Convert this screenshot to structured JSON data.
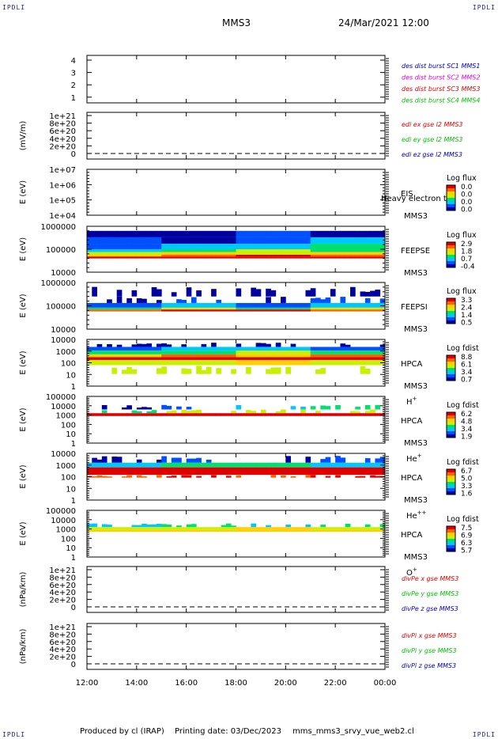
{
  "corners": {
    "tl": "IPDLI",
    "tr": "IPDLI",
    "bl": "IPDLI",
    "br": "IPDLI"
  },
  "header": {
    "spacecraft": "MMS3",
    "datetime": "24/Mar/2021 12:00"
  },
  "footer": {
    "producer": "Produced by cl (IRAP)",
    "printing": "Printing date: 03/Dec/2023",
    "script": "mms_mms3_srvy_vue_web2.cl"
  },
  "colors": {
    "red": "#e00000",
    "green": "#00c000",
    "blue": "#0000c0",
    "magenta": "#e000e0",
    "spectrogram_scale": [
      "#0000a0",
      "#0050ff",
      "#00c8ff",
      "#00e070",
      "#c8f000",
      "#ffd000",
      "#ff6000",
      "#e00000"
    ]
  },
  "chart_data": {
    "type": "heatmap",
    "x_tick_labels": [
      "12:00",
      "14:00",
      "16:00",
      "18:00",
      "20:00",
      "22:00",
      "00:00"
    ],
    "x_range_hours": [
      12,
      24
    ],
    "panels": [
      {
        "id": "des-dist-burst",
        "type": "line",
        "ylabel": "",
        "ytick_labels": [
          "4",
          "3",
          "2",
          "1"
        ],
        "ylim": [
          0.5,
          4.5
        ],
        "legend": [
          {
            "text": "des dist burst SC1 MMS1",
            "color": "#0000c0"
          },
          {
            "text": "des dist burst SC2 MMS2",
            "color": "#e000e0"
          },
          {
            "text": "des dist burst SC3 MMS3",
            "color": "#e00000"
          },
          {
            "text": "des dist burst SC4 MMS4",
            "color": "#00c000"
          }
        ]
      },
      {
        "id": "edi-e-field",
        "type": "line",
        "ylabel": "(mV/m)",
        "ytick_labels": [
          "1e+21",
          "8e+20",
          "6e+20",
          "4e+20",
          "2e+20",
          "0"
        ],
        "ylim": [
          0,
          1e+21
        ],
        "zero_line": true,
        "legend": [
          {
            "text": "edi ex gse l2 MMS3",
            "color": "#e00000"
          },
          {
            "text": "edi ey gse l2 MMS3",
            "color": "#00c000"
          },
          {
            "text": "edi ez gse l2 MMS3",
            "color": "#0000c0"
          }
        ]
      },
      {
        "id": "eis",
        "type": "heatmap",
        "ylabel": "E (eV)",
        "ytick_labels": [
          "1e+07",
          "1e+06",
          "1e+05",
          "1e+04"
        ],
        "ylim": [
          10000,
          10000000
        ],
        "yscale": "log",
        "instrument": "EIS",
        "spacecraft": "MMS3",
        "species": "",
        "overlay": "Heavy electron to",
        "colorbar": {
          "title": "Log flux",
          "labels": [
            "0.0",
            "0.0",
            "0.0",
            "0.0"
          ]
        },
        "fill_bands": []
      },
      {
        "id": "feepse",
        "type": "heatmap",
        "ylabel": "E (eV)",
        "ytick_labels": [
          "1000000",
          "100000",
          "10000"
        ],
        "ylim": [
          10000,
          1000000
        ],
        "yscale": "log",
        "instrument": "FEEPSE",
        "spacecraft": "MMS3",
        "species": "",
        "overlay": "",
        "colorbar": {
          "title": "Log flux",
          "labels": [
            "2.9",
            "1.8",
            "0.7",
            "-0.4"
          ]
        },
        "fill_bands": [
          {
            "y_from": 0.1,
            "y_to": 0.24,
            "colors": [
              0,
              0,
              1,
              0
            ]
          },
          {
            "y_from": 0.24,
            "y_to": 0.38,
            "colors": [
              1,
              0,
              1,
              2
            ]
          },
          {
            "y_from": 0.38,
            "y_to": 0.5,
            "colors": [
              1,
              2,
              2,
              3
            ]
          },
          {
            "y_from": 0.5,
            "y_to": 0.56,
            "colors": [
              2,
              3,
              4,
              3
            ]
          },
          {
            "y_from": 0.56,
            "y_to": 0.62,
            "colors": [
              4,
              5,
              4,
              5
            ]
          },
          {
            "y_from": 0.62,
            "y_to": 0.66,
            "colors": [
              5,
              6,
              7,
              6
            ]
          },
          {
            "y_from": 0.66,
            "y_to": 0.7,
            "colors": [
              7,
              7,
              7,
              7
            ]
          }
        ]
      },
      {
        "id": "feepsi",
        "type": "heatmap",
        "ylabel": "E (eV)",
        "ytick_labels": [
          "1000000",
          "100000",
          "10000"
        ],
        "ylim": [
          10000,
          1000000
        ],
        "yscale": "log",
        "instrument": "FEEPSI",
        "spacecraft": "MMS3",
        "species": "",
        "overlay": "",
        "colorbar": {
          "title": "Log flux",
          "labels": [
            "3.3",
            "2.4",
            "1.4",
            "0.5"
          ]
        },
        "fill_bands": [
          {
            "y_from": 0.08,
            "y_to": 0.3,
            "colors": [
              0,
              0,
              0,
              0
            ],
            "sparse": true
          },
          {
            "y_from": 0.3,
            "y_to": 0.44,
            "colors": [
              0,
              1,
              0,
              1
            ],
            "sparse": true
          },
          {
            "y_from": 0.44,
            "y_to": 0.54,
            "colors": [
              1,
              2,
              1,
              2
            ]
          },
          {
            "y_from": 0.54,
            "y_to": 0.58,
            "colors": [
              3,
              4,
              3,
              4
            ]
          },
          {
            "y_from": 0.58,
            "y_to": 0.62,
            "colors": [
              6,
              7,
              7,
              6
            ]
          }
        ]
      },
      {
        "id": "hpca-h",
        "type": "heatmap",
        "ylabel": "E (eV)",
        "ytick_labels": [
          "10000",
          "1000",
          "100",
          "10",
          "1"
        ],
        "ylim": [
          1,
          10000
        ],
        "yscale": "log",
        "instrument": "HPCA",
        "spacecraft": "MMS3",
        "species": "H",
        "species_sup": "+",
        "overlay": "",
        "colorbar": {
          "title": "Log fdist",
          "labels": [
            "8.8",
            "6.1",
            "3.4",
            "0.7"
          ]
        },
        "fill_bands": [
          {
            "y_from": 0.06,
            "y_to": 0.16,
            "colors": [
              0,
              0,
              0,
              0
            ],
            "sparse": true
          },
          {
            "y_from": 0.16,
            "y_to": 0.24,
            "colors": [
              1,
              2,
              2,
              1
            ]
          },
          {
            "y_from": 0.24,
            "y_to": 0.32,
            "colors": [
              3,
              3,
              4,
              3
            ]
          },
          {
            "y_from": 0.32,
            "y_to": 0.38,
            "colors": [
              5,
              6,
              5,
              6
            ]
          },
          {
            "y_from": 0.38,
            "y_to": 0.44,
            "colors": [
              7,
              7,
              7,
              7
            ]
          },
          {
            "y_from": 0.44,
            "y_to": 0.55,
            "colors": [
              4,
              4,
              5,
              4
            ]
          },
          {
            "y_from": 0.55,
            "y_to": 0.74,
            "colors": [
              4,
              4,
              4,
              4
            ],
            "sparse": true
          }
        ]
      },
      {
        "id": "hpca-he1",
        "type": "heatmap",
        "ylabel": "E (eV)",
        "ytick_labels": [
          "100000",
          "10000",
          "1000",
          "100",
          "10",
          "1"
        ],
        "ylim": [
          1,
          100000
        ],
        "yscale": "log",
        "instrument": "HPCA",
        "spacecraft": "MMS3",
        "species": "He",
        "species_sup": "+",
        "overlay": "",
        "colorbar": {
          "title": "Log fdist",
          "labels": [
            "6.2",
            "4.8",
            "3.4",
            "1.9"
          ]
        },
        "fill_bands": [
          {
            "y_from": 0.18,
            "y_to": 0.28,
            "colors": [
              0,
              1,
              2,
              3
            ],
            "sparse": true
          },
          {
            "y_from": 0.28,
            "y_to": 0.36,
            "colors": [
              3,
              4,
              4,
              4
            ],
            "sparse": true
          },
          {
            "y_from": 0.36,
            "y_to": 0.42,
            "colors": [
              7,
              7,
              7,
              7
            ]
          }
        ]
      },
      {
        "id": "hpca-he2",
        "type": "heatmap",
        "ylabel": "E (eV)",
        "ytick_labels": [
          "10000",
          "1000",
          "100",
          "10",
          "1"
        ],
        "ylim": [
          1,
          10000
        ],
        "yscale": "log",
        "instrument": "HPCA",
        "spacecraft": "MMS3",
        "species": "He",
        "species_sup": "++",
        "overlay": "",
        "colorbar": {
          "title": "Log fdist",
          "labels": [
            "6.7",
            "5.0",
            "3.3",
            "1.6"
          ]
        },
        "fill_bands": [
          {
            "y_from": 0.04,
            "y_to": 0.2,
            "colors": [
              0,
              1,
              0,
              1
            ],
            "sparse": true
          },
          {
            "y_from": 0.2,
            "y_to": 0.3,
            "colors": [
              2,
              3,
              3,
              2
            ]
          },
          {
            "y_from": 0.3,
            "y_to": 0.46,
            "colors": [
              7,
              7,
              7,
              7
            ]
          },
          {
            "y_from": 0.46,
            "y_to": 0.52,
            "colors": [
              6,
              7,
              6,
              7
            ],
            "sparse": true
          }
        ]
      },
      {
        "id": "hpca-o",
        "type": "heatmap",
        "ylabel": "E (eV)",
        "ytick_labels": [
          "100000",
          "10000",
          "1000",
          "100",
          "10",
          "1"
        ],
        "ylim": [
          1,
          100000
        ],
        "yscale": "log",
        "instrument": "HPCA",
        "spacecraft": "MMS3",
        "species": "O",
        "species_sup": "+",
        "overlay": "",
        "colorbar": {
          "title": "Log fdist",
          "labels": [
            "7.5",
            "6.9",
            "6.3",
            "5.7"
          ]
        },
        "fill_bands": [
          {
            "y_from": 0.28,
            "y_to": 0.36,
            "colors": [
              2,
              3,
              2,
              3
            ],
            "sparse": true
          },
          {
            "y_from": 0.36,
            "y_to": 0.42,
            "colors": [
              4,
              4,
              5,
              4
            ]
          },
          {
            "y_from": 0.42,
            "y_to": 0.46,
            "colors": [
              5,
              5,
              5,
              5
            ]
          }
        ]
      },
      {
        "id": "div-pe",
        "type": "line",
        "ylabel": "(nPa/km)",
        "ytick_labels": [
          "1e+21",
          "8e+20",
          "6e+20",
          "4e+20",
          "2e+20",
          "0"
        ],
        "ylim": [
          0,
          1e+21
        ],
        "zero_line": true,
        "legend": [
          {
            "text": "divPe x gse MMS3",
            "color": "#e00000"
          },
          {
            "text": "divPe y gse MMS3",
            "color": "#00c000"
          },
          {
            "text": "divPe z gse MMS3",
            "color": "#0000c0"
          }
        ]
      },
      {
        "id": "div-pi",
        "type": "line",
        "ylabel": "(nPa/km)",
        "ytick_labels": [
          "1e+21",
          "8e+20",
          "6e+20",
          "4e+20",
          "2e+20",
          "0"
        ],
        "ylim": [
          0,
          1e+21
        ],
        "zero_line": true,
        "legend": [
          {
            "text": "divPi x gse MMS3",
            "color": "#e00000"
          },
          {
            "text": "divPi y gse MMS3",
            "color": "#00c000"
          },
          {
            "text": "divPi z gse MMS3",
            "color": "#0000c0"
          }
        ]
      }
    ]
  }
}
